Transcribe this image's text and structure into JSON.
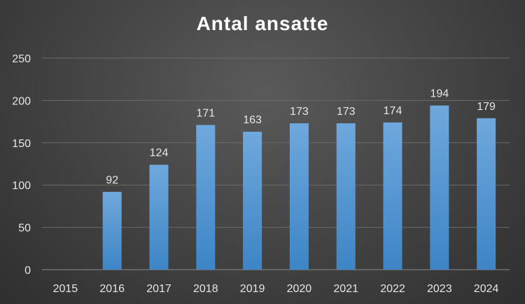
{
  "chart_data": {
    "type": "bar",
    "title": "Antal ansatte",
    "categories": [
      "2015",
      "2016",
      "2017",
      "2018",
      "2019",
      "2020",
      "2021",
      "2022",
      "2023",
      "2024"
    ],
    "values": [
      null,
      92,
      124,
      171,
      163,
      173,
      173,
      174,
      194,
      179
    ],
    "data_labels": [
      "",
      "92",
      "124",
      "171",
      "163",
      "173",
      "173",
      "174",
      "194",
      "179"
    ],
    "ylim": [
      0,
      250
    ],
    "yticks": [
      0,
      50,
      100,
      150,
      200,
      250
    ],
    "grid": true,
    "legend": "none",
    "colors": {
      "bar_top": "#6fa8dc",
      "bar_bottom": "#3d85c6",
      "gridline": "#6a6a6a",
      "background": "#464646"
    }
  }
}
